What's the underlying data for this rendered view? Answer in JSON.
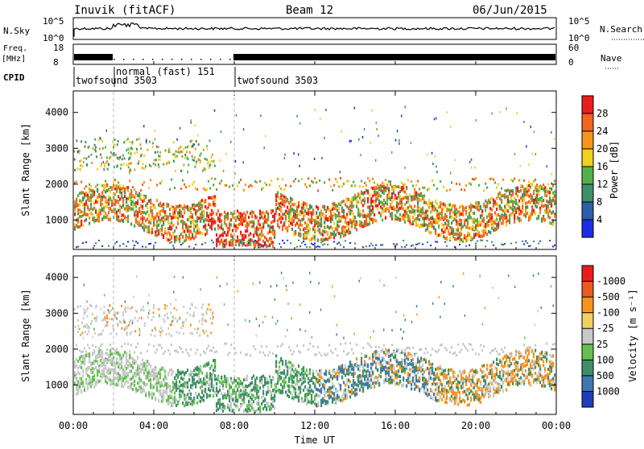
{
  "header": {
    "title": "Inuvik (fitACF)",
    "beam": "Beam 12",
    "date": "06/Jun/2015"
  },
  "top_panels": {
    "nsky_label": "N.Sky",
    "nsky_ticks": [
      "10^5",
      "10^0"
    ],
    "nsearch_label": "N.Search",
    "nsearch_ticks": [
      "10^5",
      "10^0"
    ],
    "freq_label": "Freq.",
    "freq_unit": "[MHz]",
    "freq_ticks": [
      "18",
      "8"
    ],
    "nave_label": "Nave",
    "nave_ticks": [
      "60",
      "0"
    ],
    "cpid_label": "CPID",
    "cpid_segments": [
      {
        "label": "twofsound 3503",
        "start_hour": 0.0
      },
      {
        "label": "normal (fast) 151",
        "start_hour": 2.0
      },
      {
        "label": "twofsound 3503",
        "start_hour": 8.0
      }
    ]
  },
  "chart_data": [
    {
      "type": "heatmap",
      "name": "power-panel",
      "ylabel": "Slant Range [km]",
      "x_range_hours": [
        0,
        24
      ],
      "ylim_km": [
        180,
        4600
      ],
      "y_ticks": [
        "1000",
        "2000",
        "3000",
        "4000"
      ],
      "colorbar_label": "Power [dB]",
      "colorbar_ticks": [
        "4",
        "8",
        "12",
        "16",
        "20",
        "24",
        "28"
      ],
      "colorbar_colors": [
        "#1e2de8",
        "#2f5fa8",
        "#3f8f6a",
        "#53b04a",
        "#f0d020",
        "#f7941d",
        "#f26522",
        "#e81e1e"
      ]
    },
    {
      "type": "heatmap",
      "name": "velocity-panel",
      "ylabel": "Slant Range [km]",
      "x_range_hours": [
        0,
        24
      ],
      "ylim_km": [
        180,
        4600
      ],
      "y_ticks": [
        "1000",
        "2000",
        "3000",
        "4000"
      ],
      "colorbar_label": "Velocity [m s⁻¹]",
      "colorbar_ticks": [
        "1000",
        "500",
        "100",
        "25",
        "-25",
        "-100",
        "-500",
        "-1000"
      ],
      "colorbar_colors": [
        "#1e3fb8",
        "#3f77b0",
        "#3f8f6a",
        "#64c050",
        "#c8c8c8",
        "#f0d060",
        "#f7941d",
        "#e85a1e",
        "#e81e1e"
      ]
    }
  ],
  "x_axis": {
    "ticks": [
      "00:00",
      "04:00",
      "08:00",
      "12:00",
      "16:00",
      "20:00",
      "00:00"
    ],
    "label": "Time UT"
  }
}
